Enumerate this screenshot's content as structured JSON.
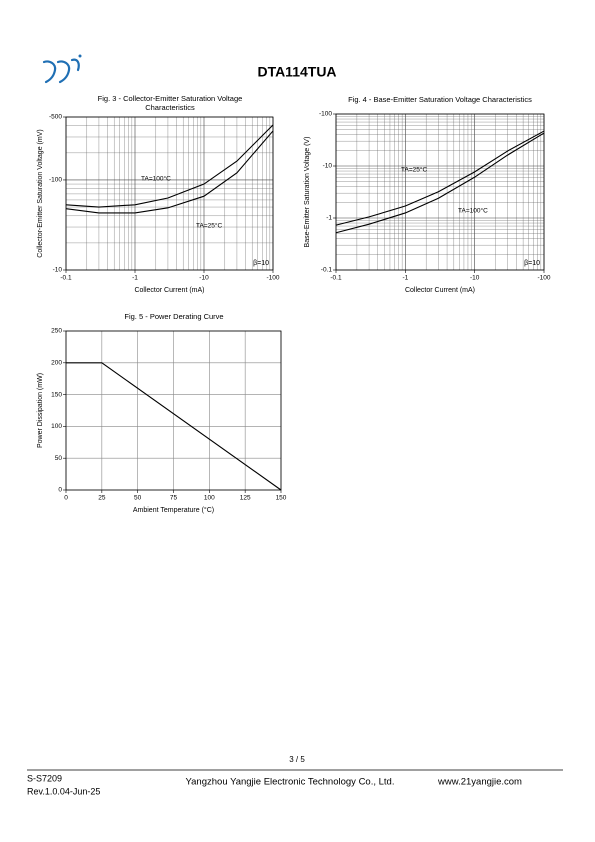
{
  "header": {
    "title": "DTA114TUA"
  },
  "chart_data": [
    {
      "type": "line",
      "title": [
        "Fig. 3 - Collector-Emitter Saturation Voltage",
        "Characteristics"
      ],
      "x_label": "Collector Current (mA)",
      "y_label": "Collector-Emitter Saturation Voltage (mV)",
      "x": [
        -0.1,
        -0.3,
        -1,
        -3,
        -10,
        -30,
        -100
      ],
      "series": [
        {
          "name": "TA=100°C",
          "color": "#000000",
          "values": [
            -53,
            -50,
            -53,
            -63,
            -90,
            -162,
            -408
          ]
        },
        {
          "name": "TA=25°C",
          "color": "#000000",
          "values": [
            -48,
            -43,
            -43,
            -49,
            -66,
            -120,
            -350
          ]
        }
      ],
      "xlim": [
        -0.1,
        -100
      ],
      "xticks": [
        -0.1,
        -1,
        -10,
        -100
      ],
      "ylim": [
        -10,
        -500
      ],
      "yticks": [
        -10,
        -100,
        -500
      ],
      "log_scale": true,
      "grid": true,
      "annotation": "β=10"
    },
    {
      "type": "line",
      "title": [
        "Fig. 4 - Base-Emitter Saturation Voltage Characteristics"
      ],
      "x_label": "Collector Current (mA)",
      "y_label": "Base-Emitter Saturation Voltage (V)",
      "x": [
        -0.1,
        -0.3,
        -1,
        -3,
        -10,
        -30,
        -100
      ],
      "series": [
        {
          "name": "TA=25°C",
          "color": "#000000",
          "values": [
            -0.73,
            -1.05,
            -1.7,
            -3.2,
            -7.7,
            -19.5,
            -47
          ]
        },
        {
          "name": "TA=100°C",
          "color": "#000000",
          "values": [
            -0.52,
            -0.76,
            -1.25,
            -2.4,
            -6.1,
            -16.3,
            -43
          ]
        }
      ],
      "xlim": [
        -0.1,
        -100
      ],
      "xticks": [
        -0.1,
        -1,
        -10,
        -100
      ],
      "ylim": [
        -0.1,
        -100
      ],
      "yticks": [
        -0.1,
        -1,
        -10,
        -100
      ],
      "log_scale": true,
      "grid": true,
      "annotation": "β=10"
    },
    {
      "type": "line",
      "title": [
        "Fig. 5 - Power Derating Curve"
      ],
      "x_label": "Ambient Temperature (°C)",
      "y_label": "Power Dissipation  (mW)",
      "x": [
        0,
        25,
        150
      ],
      "series": [
        {
          "color": "#000000",
          "values": [
            200,
            200,
            0
          ]
        }
      ],
      "xlim": [
        0,
        150
      ],
      "xticks": [
        0,
        25,
        50,
        75,
        100,
        125,
        150
      ],
      "ylim": [
        0,
        250
      ],
      "yticks": [
        0,
        50,
        100,
        150,
        200,
        250
      ],
      "log_scale": false,
      "grid": true
    }
  ],
  "footer": {
    "page": "3 / 5",
    "doc_id": "S-S7209",
    "revision": "Rev.1.0.04-Jun-25",
    "company": "Yangzhou Yangjie Electronic Technology Co., Ltd.",
    "website": "www.21yangjie.com"
  }
}
